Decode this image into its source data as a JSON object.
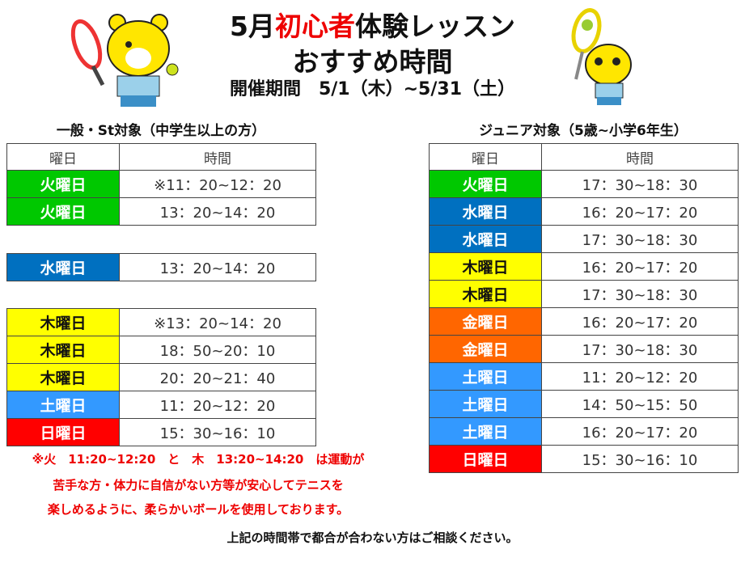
{
  "header": {
    "title_prefix": "5月",
    "title_highlight": "初心者",
    "title_suffix": "体験レッスン",
    "title_line2": "おすすめ時間",
    "period": "開催期間　5/1（木）~5/31（土）"
  },
  "colors": {
    "tue": "#00c800",
    "wed": "#0070c0",
    "thu": "#ffff00",
    "fri": "#ff6600",
    "sat": "#3399ff",
    "sun": "#ff0000",
    "highlight": "#e00000"
  },
  "general": {
    "heading": "一般・St対象（中学生以上の方）",
    "col_day": "曜日",
    "col_time": "時間",
    "groups": [
      [
        {
          "day": "火曜日",
          "time": "※11：20~12：20",
          "color": "tue"
        },
        {
          "day": "火曜日",
          "time": "13：20~14：20",
          "color": "tue"
        }
      ],
      [
        {
          "day": "水曜日",
          "time": "13：20~14：20",
          "color": "wed"
        }
      ],
      [
        {
          "day": "木曜日",
          "time": "※13：20~14：20",
          "color": "thu"
        },
        {
          "day": "木曜日",
          "time": "18：50~20：10",
          "color": "thu"
        },
        {
          "day": "木曜日",
          "time": "20：20~21：40",
          "color": "thu"
        },
        {
          "day": "土曜日",
          "time": "11：20~12：20",
          "color": "sat"
        },
        {
          "day": "日曜日",
          "time": "15：30~16：10",
          "color": "sun"
        }
      ]
    ]
  },
  "junior": {
    "heading": "ジュニア対象（5歳~小学6年生）",
    "col_day": "曜日",
    "col_time": "時間",
    "rows": [
      {
        "day": "火曜日",
        "time": "17：30~18：30",
        "color": "tue"
      },
      {
        "day": "水曜日",
        "time": "16：20~17：20",
        "color": "wed"
      },
      {
        "day": "水曜日",
        "time": "17：30~18：30",
        "color": "wed"
      },
      {
        "day": "木曜日",
        "time": "16：20~17：20",
        "color": "thu"
      },
      {
        "day": "木曜日",
        "time": "17：30~18：30",
        "color": "thu"
      },
      {
        "day": "金曜日",
        "time": "16：20~17：20",
        "color": "fri"
      },
      {
        "day": "金曜日",
        "time": "17：30~18：30",
        "color": "fri"
      },
      {
        "day": "土曜日",
        "time": "11：20~12：20",
        "color": "sat"
      },
      {
        "day": "土曜日",
        "time": "14：50~15：50",
        "color": "sat"
      },
      {
        "day": "土曜日",
        "time": "16：20~17：20",
        "color": "sat"
      },
      {
        "day": "日曜日",
        "time": "15：30~16：10",
        "color": "sun"
      }
    ]
  },
  "note": {
    "line1": "※火　11:20~12:20　と　木　13:20~14:20　は運動が",
    "line2": "苦手な方・体力に自信がない方等が安心してテニスを",
    "line3": "楽しめるように、柔らかいボールを使用しております。"
  },
  "footer": "上記の時間帯で都合が合わない方はご相談ください。"
}
